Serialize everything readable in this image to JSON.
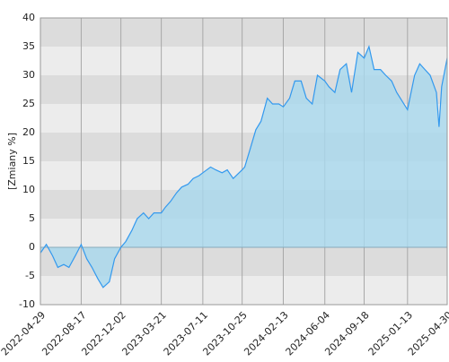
{
  "chart_data": {
    "type": "area",
    "y_label": "[Zmiany %]",
    "x": [
      "2022-04-29",
      "2022-05-15",
      "2022-06-01",
      "2022-06-15",
      "2022-07-01",
      "2022-07-15",
      "2022-08-01",
      "2022-08-17",
      "2022-09-01",
      "2022-09-15",
      "2022-10-01",
      "2022-10-15",
      "2022-11-01",
      "2022-11-15",
      "2022-12-02",
      "2022-12-15",
      "2023-01-01",
      "2023-01-15",
      "2023-02-01",
      "2023-02-15",
      "2023-03-01",
      "2023-03-21",
      "2023-04-01",
      "2023-04-15",
      "2023-05-01",
      "2023-05-15",
      "2023-06-01",
      "2023-06-15",
      "2023-07-01",
      "2023-07-11",
      "2023-08-01",
      "2023-08-15",
      "2023-09-01",
      "2023-09-15",
      "2023-10-01",
      "2023-10-25",
      "2023-11-01",
      "2023-11-15",
      "2023-12-01",
      "2023-12-15",
      "2024-01-01",
      "2024-01-15",
      "2024-02-01",
      "2024-02-13",
      "2024-03-01",
      "2024-03-15",
      "2024-04-01",
      "2024-04-15",
      "2024-05-01",
      "2024-05-15",
      "2024-06-04",
      "2024-06-15",
      "2024-07-01",
      "2024-07-15",
      "2024-08-01",
      "2024-08-15",
      "2024-09-01",
      "2024-09-18",
      "2024-10-01",
      "2024-10-15",
      "2024-11-01",
      "2024-11-15",
      "2024-12-01",
      "2024-12-15",
      "2025-01-13",
      "2025-02-01",
      "2025-02-15",
      "2025-03-01",
      "2025-03-15",
      "2025-04-01",
      "2025-04-08",
      "2025-04-15",
      "2025-04-30"
    ],
    "values": [
      -1,
      0.5,
      -1.5,
      -3.5,
      -3,
      -3.5,
      -1.5,
      0.5,
      -2,
      -3.5,
      -5.5,
      -7,
      -6,
      -2,
      0,
      1,
      3,
      5,
      6,
      5,
      6,
      6,
      7,
      8,
      9.5,
      10.5,
      11,
      12,
      12.5,
      13,
      14,
      13.5,
      13,
      13.5,
      12,
      13.5,
      14,
      17,
      20.5,
      22,
      26,
      25,
      25,
      24.5,
      26,
      29,
      29,
      26,
      25,
      30,
      29,
      28,
      27,
      31,
      32,
      27,
      34,
      33,
      35,
      31,
      31,
      30,
      29,
      27,
      24,
      30,
      32,
      31,
      30,
      27,
      21,
      28,
      33
    ],
    "color": "#3399ee",
    "fill": "#a8d8ee",
    "xlim": [
      "2022-04-29",
      "2025-04-30"
    ],
    "xticks": [
      "2022-04-29",
      "2022-08-17",
      "2022-12-02",
      "2023-03-21",
      "2023-07-11",
      "2023-10-25",
      "2024-02-13",
      "2024-06-04",
      "2024-09-18",
      "2025-01-13",
      "2025-04-30"
    ],
    "ylim": [
      -10,
      40
    ],
    "yticks": [
      -10,
      -5,
      0,
      5,
      10,
      15,
      20,
      25,
      30,
      35,
      40
    ],
    "grid": true
  }
}
